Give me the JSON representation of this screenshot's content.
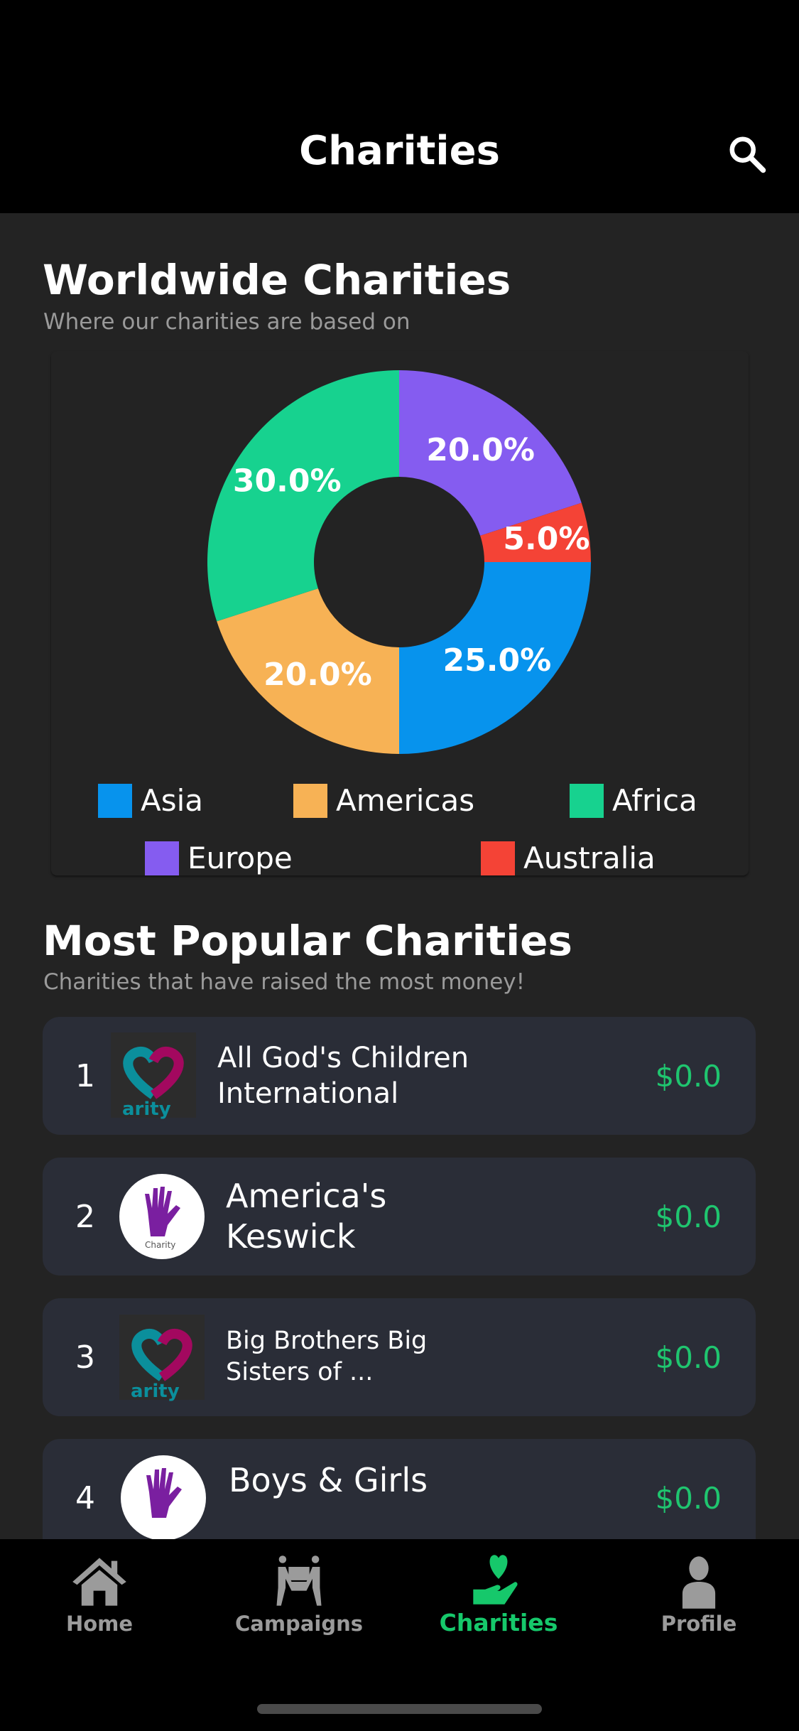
{
  "header": {
    "title": "Charities",
    "search_icon": "search-icon"
  },
  "worldwide": {
    "title": "Worldwide Charities",
    "subtitle": "Where our charities are based on"
  },
  "chart_data": {
    "type": "pie",
    "donut": true,
    "categories": [
      "Europe",
      "Australia",
      "Asia",
      "Americas",
      "Africa"
    ],
    "values": [
      20.0,
      5.0,
      25.0,
      20.0,
      30.0
    ],
    "labels": [
      "20.0%",
      "5.0%",
      "25.0%",
      "20.0%",
      "30.0%"
    ],
    "colors": [
      "#855cf0",
      "#f44336",
      "#0793ed",
      "#f7b255",
      "#17d28f"
    ],
    "legend": [
      "Asia",
      "Americas",
      "Africa",
      "Europe",
      "Australia"
    ],
    "legend_colors": [
      "#0793ed",
      "#f7b255",
      "#17d28f",
      "#855cf0",
      "#f44336"
    ],
    "legend_placement": "bottom"
  },
  "popular": {
    "title": "Most Popular Charities",
    "subtitle": "Charities that have raised the most money!",
    "items": [
      {
        "rank": "1",
        "name": "All God's Children International",
        "amount": "$0.0",
        "logo": "heart-logo"
      },
      {
        "rank": "2",
        "name": "America's Keswick",
        "amount": "$0.0",
        "logo": "hand-logo"
      },
      {
        "rank": "3",
        "name": "Big Brothers Big Sisters of ...",
        "amount": "$0.0",
        "logo": "heart-logo"
      },
      {
        "rank": "4",
        "name": "Boys & Girls",
        "amount": "$0.0",
        "logo": "hand-logo"
      }
    ]
  },
  "nav": {
    "items": [
      {
        "label": "Home",
        "icon": "home-icon"
      },
      {
        "label": "Campaigns",
        "icon": "campaigns-icon"
      },
      {
        "label": "Charities",
        "icon": "charity-icon",
        "active": true
      },
      {
        "label": "Profile",
        "icon": "profile-icon"
      }
    ],
    "active_color": "#16c86b"
  }
}
